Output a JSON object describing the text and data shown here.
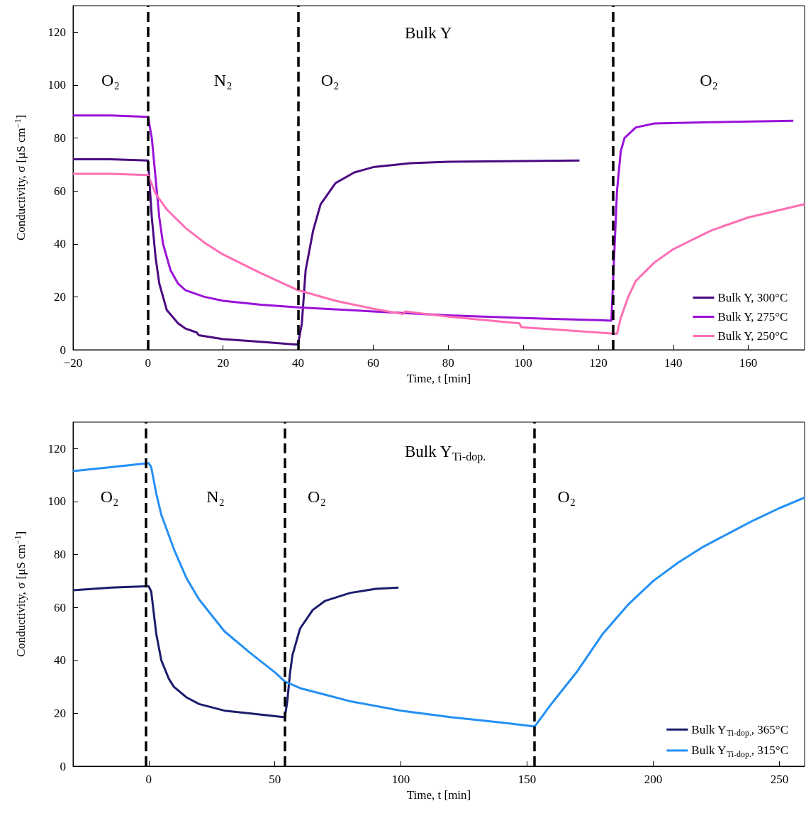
{
  "chart_data": [
    {
      "type": "line",
      "title": "Bulk Y",
      "xlabel": "Time, t [min]",
      "ylabel": "Conductivity, σ [μS cm$^{−1}$]",
      "xlim": [
        -20,
        175
      ],
      "xticks": [
        {
          "value": -20,
          "label": "−20"
        },
        0,
        20,
        40,
        60,
        80,
        100,
        120,
        140,
        160
      ],
      "ylim": [
        0,
        130
      ],
      "yticks": [
        0,
        20,
        40,
        60,
        80,
        100,
        120
      ],
      "grid": false,
      "legend": "bottom right",
      "marker": "none",
      "line_style": "solid",
      "ref_lines": [
        {
          "axis": "x",
          "value": 0,
          "color": "#000000",
          "line_style": "dashed"
        },
        {
          "axis": "x",
          "value": 40,
          "color": "#000000",
          "line_style": "dashed"
        },
        {
          "axis": "x",
          "value": 124,
          "color": "#000000",
          "line_style": "dashed"
        }
      ],
      "annotations": [
        "O₂",
        "N₂",
        "O₂",
        "O₂"
      ],
      "series": [
        {
          "name": "Bulk Y, 300°C",
          "color": "#4b0a82",
          "x": [
            -20,
            -10,
            0,
            1,
            2,
            3,
            5,
            8,
            10,
            13,
            13.5,
            20,
            30,
            39,
            40,
            41,
            42,
            44,
            46,
            50,
            55,
            60,
            70,
            80,
            100,
            115
          ],
          "values": [
            72,
            72,
            71.5,
            50,
            35,
            25,
            15,
            10,
            8,
            6.5,
            5.5,
            4,
            3,
            2,
            2,
            10,
            30,
            45,
            55,
            63,
            67,
            69,
            70.5,
            71,
            71.3,
            71.5
          ]
        },
        {
          "name": "Bulk Y, 275°C",
          "color": "#9a12d8",
          "x": [
            -20,
            -10,
            0,
            1,
            2,
            3,
            4,
            6,
            8,
            10,
            15,
            20,
            30,
            40,
            60,
            80,
            100,
            120,
            123.5,
            125,
            126,
            127,
            130,
            135,
            150,
            172
          ],
          "values": [
            88.5,
            88.5,
            88,
            80,
            65,
            50,
            40,
            30,
            25,
            22.5,
            20,
            18.5,
            17,
            16,
            14.5,
            13,
            12,
            11.2,
            11,
            60,
            75,
            80,
            84,
            85.5,
            86,
            86.5
          ]
        },
        {
          "name": "Bulk Y, 250°C",
          "color": "#ff6eb4",
          "x": [
            -20,
            -10,
            0,
            2,
            5,
            10,
            15,
            20,
            30,
            40,
            50,
            60,
            68,
            68.5,
            80,
            99,
            99.5,
            110,
            120,
            125,
            126,
            128,
            130,
            135,
            140,
            150,
            160,
            175
          ],
          "values": [
            66.5,
            66.5,
            66,
            59,
            53,
            46,
            40.5,
            36,
            29,
            22.5,
            18.5,
            15.5,
            13.5,
            14.5,
            12.5,
            10,
            8.5,
            7.5,
            6.5,
            6,
            12,
            20,
            26,
            33,
            38,
            45,
            50,
            55
          ]
        }
      ]
    },
    {
      "type": "line",
      "title": "Bulk Y$_{Ti-dop.}$",
      "xlabel": "Time, t [min]",
      "ylabel": "Conductivity, σ [μS cm$^{−1}$]",
      "xlim": [
        -30,
        260
      ],
      "xticks": [
        0,
        50,
        100,
        150,
        200,
        250
      ],
      "ylim": [
        0,
        130
      ],
      "yticks": [
        0,
        20,
        40,
        60,
        80,
        100,
        120
      ],
      "grid": false,
      "legend": "bottom right",
      "marker": "none",
      "line_style": "solid",
      "ref_lines": [
        {
          "axis": "x",
          "value": -1,
          "color": "#000000",
          "line_style": "dashed"
        },
        {
          "axis": "x",
          "value": 54,
          "color": "#000000",
          "line_style": "dashed"
        },
        {
          "axis": "x",
          "value": 153,
          "color": "#000000",
          "line_style": "dashed"
        }
      ],
      "annotations": [
        "O₂",
        "N₂",
        "O₂",
        "O₂"
      ],
      "series": [
        {
          "name": "Bulk Y$_{Ti-dop.}$, 365°C",
          "color": "#1c1c6e",
          "x": [
            -30,
            -15,
            0,
            1,
            2,
            3,
            5,
            8,
            10,
            15,
            20,
            30,
            40,
            54,
            55,
            56,
            57,
            60,
            65,
            70,
            80,
            90,
            99
          ],
          "values": [
            66.5,
            67.5,
            68,
            66,
            58,
            50,
            40,
            33,
            30,
            26,
            23.5,
            21,
            20,
            18.5,
            25,
            35,
            42,
            52,
            59,
            62.5,
            65.5,
            67,
            67.5
          ]
        },
        {
          "name": "Bulk Y$_{Ti-dop.}$, 315°C",
          "color": "#2490f5",
          "x": [
            -30,
            -15,
            0,
            1,
            3,
            5,
            10,
            15,
            20,
            30,
            40,
            50,
            54,
            60,
            70,
            80,
            100,
            120,
            140,
            153,
            160,
            170,
            180,
            190,
            200,
            210,
            220,
            230,
            240,
            250,
            260
          ],
          "values": [
            111.5,
            113,
            114.5,
            113,
            103,
            95,
            82,
            71,
            63,
            51,
            43,
            35.5,
            32,
            29.5,
            27,
            24.5,
            21,
            18.5,
            16.5,
            15,
            24,
            36,
            50,
            61,
            70,
            77,
            83,
            88,
            93,
            97.5,
            101.5
          ]
        }
      ]
    }
  ]
}
